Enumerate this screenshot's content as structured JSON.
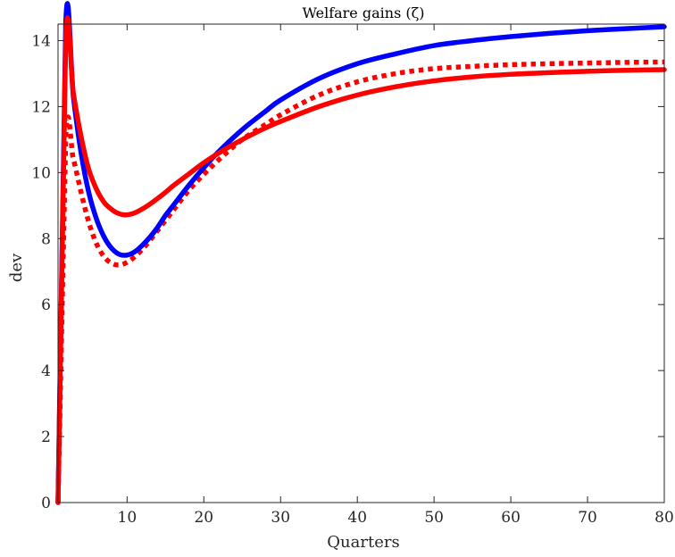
{
  "chart_data": {
    "type": "line",
    "title": "Welfare gains (ζ)",
    "xlabel": "Quarters",
    "ylabel": "dev",
    "xlim": [
      1,
      80
    ],
    "ylim": [
      0,
      14.5
    ],
    "xticks": [
      10,
      20,
      30,
      40,
      50,
      60,
      70,
      80
    ],
    "yticks": [
      0,
      2,
      4,
      6,
      8,
      10,
      12,
      14
    ],
    "grid": false,
    "legend": "none",
    "series": [
      {
        "color": "#0000ff",
        "style": "solid",
        "x": [
          1,
          2,
          3,
          4,
          5,
          6,
          7,
          8,
          9,
          10,
          11,
          12,
          13,
          14,
          15,
          16,
          18,
          20,
          22,
          25,
          28,
          30,
          35,
          40,
          45,
          50,
          55,
          60,
          65,
          70,
          75,
          80
        ],
        "y": [
          0,
          14.5,
          12.3,
          10.6,
          9.4,
          8.6,
          8.05,
          7.7,
          7.52,
          7.5,
          7.6,
          7.8,
          8.05,
          8.35,
          8.7,
          9.0,
          9.6,
          10.15,
          10.65,
          11.3,
          11.85,
          12.2,
          12.85,
          13.3,
          13.6,
          13.85,
          14.0,
          14.12,
          14.22,
          14.3,
          14.36,
          14.42
        ]
      },
      {
        "color": "#ff0000",
        "style": "solid",
        "x": [
          1,
          2,
          3,
          4,
          5,
          6,
          7,
          8,
          9,
          10,
          11,
          12,
          13,
          14,
          15,
          16,
          18,
          20,
          22,
          25,
          28,
          30,
          35,
          40,
          45,
          50,
          55,
          60,
          65,
          70,
          75,
          80
        ],
        "y": [
          0,
          14.0,
          12.4,
          11.1,
          10.1,
          9.5,
          9.1,
          8.88,
          8.75,
          8.72,
          8.78,
          8.9,
          9.05,
          9.22,
          9.4,
          9.6,
          9.95,
          10.3,
          10.6,
          11.0,
          11.35,
          11.55,
          12.0,
          12.35,
          12.6,
          12.78,
          12.9,
          12.98,
          13.03,
          13.07,
          13.1,
          13.12
        ]
      },
      {
        "color": "#ff0000",
        "style": "dotted",
        "x": [
          1,
          2,
          3,
          4,
          5,
          6,
          7,
          8,
          9,
          10,
          11,
          12,
          13,
          14,
          15,
          16,
          18,
          20,
          22,
          25,
          28,
          30,
          35,
          40,
          45,
          50,
          55,
          60,
          65,
          70,
          75,
          80
        ],
        "y": [
          0,
          11.0,
          10.4,
          9.4,
          8.5,
          7.85,
          7.45,
          7.25,
          7.2,
          7.28,
          7.45,
          7.68,
          7.95,
          8.25,
          8.55,
          8.85,
          9.45,
          9.95,
          10.4,
          11.0,
          11.45,
          11.75,
          12.35,
          12.75,
          13.0,
          13.15,
          13.22,
          13.27,
          13.3,
          13.32,
          13.34,
          13.35
        ]
      }
    ]
  }
}
